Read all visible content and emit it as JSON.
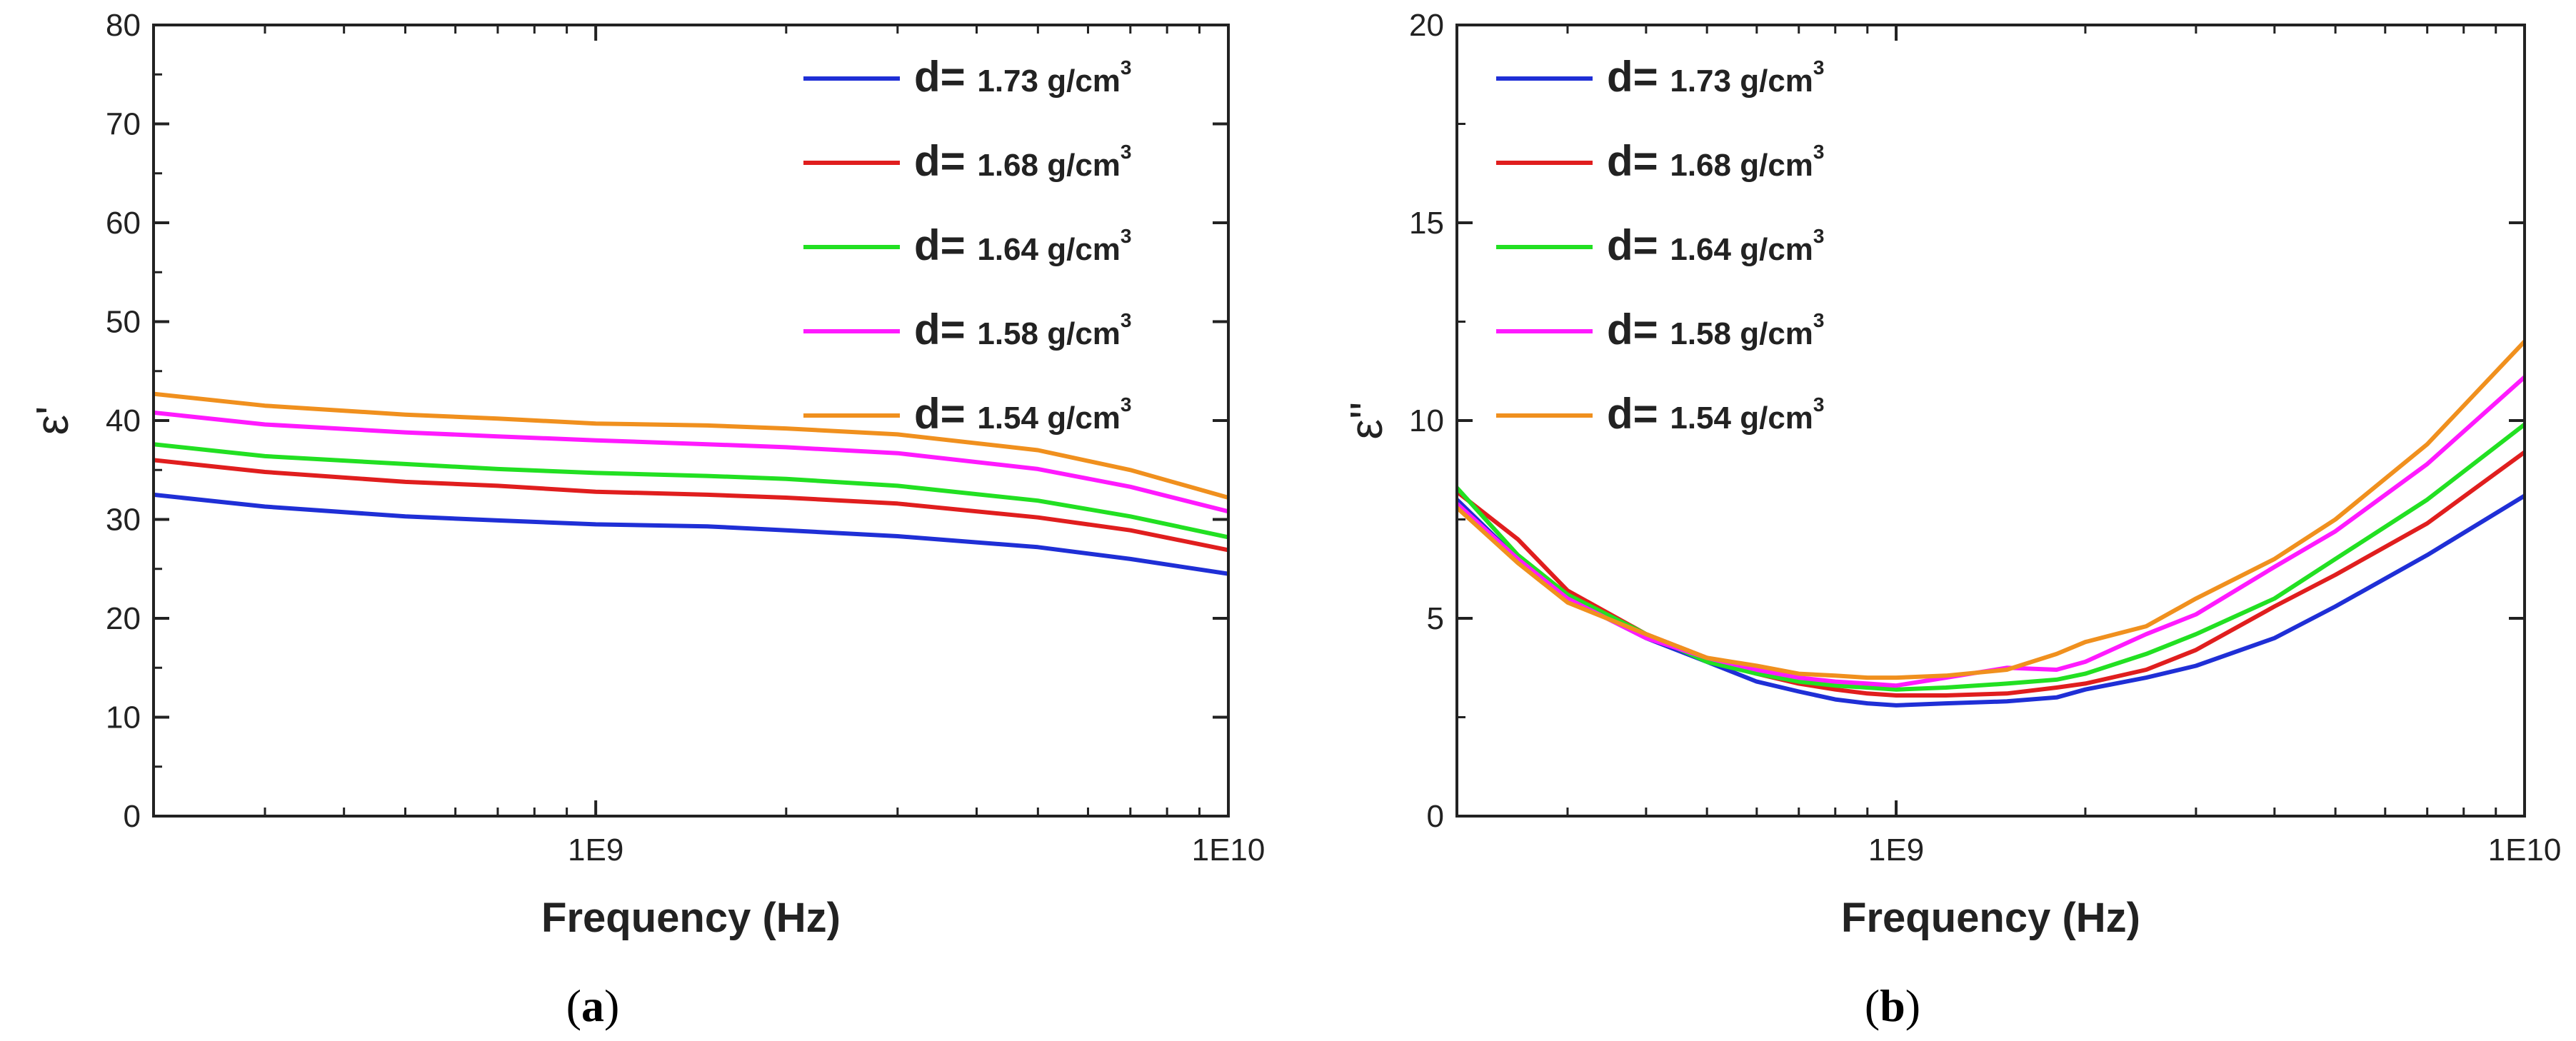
{
  "chart_data": [
    {
      "panel": "a",
      "caption_letter": "a",
      "type": "line",
      "xscale": "log",
      "xlim": [
        200000000,
        10000000000
      ],
      "ylim": [
        0,
        80
      ],
      "ylabel": "ε'",
      "xlabel": "Frequency (Hz)",
      "xticks": [
        {
          "value": 1000000000,
          "label": "1E9"
        },
        {
          "value": 10000000000,
          "label": "1E10"
        }
      ],
      "yticks": [
        0,
        10,
        20,
        30,
        40,
        50,
        60,
        70,
        80
      ],
      "legend_position": "top-right",
      "series": [
        {
          "name": "d= 1.73 g/cm3",
          "prefix": "d=",
          "value": "1.73 g/cm",
          "sup": "3",
          "color": "#1f2fd6",
          "x": [
            200000000,
            300000000,
            500000000,
            700000000,
            1000000000,
            1500000000,
            2000000000,
            3000000000,
            5000000000,
            7000000000,
            10000000000
          ],
          "y": [
            32.5,
            31.3,
            30.3,
            29.9,
            29.5,
            29.3,
            28.9,
            28.3,
            27.2,
            26.0,
            24.5
          ]
        },
        {
          "name": "d= 1.68 g/cm3",
          "prefix": "d=",
          "value": "1.68 g/cm",
          "sup": "3",
          "color": "#e01e1e",
          "x": [
            200000000,
            300000000,
            500000000,
            700000000,
            1000000000,
            1500000000,
            2000000000,
            3000000000,
            5000000000,
            7000000000,
            10000000000
          ],
          "y": [
            36.0,
            34.8,
            33.8,
            33.4,
            32.8,
            32.5,
            32.2,
            31.6,
            30.2,
            28.9,
            26.9
          ]
        },
        {
          "name": "d= 1.64 g/cm3",
          "prefix": "d=",
          "value": "1.64 g/cm",
          "sup": "3",
          "color": "#22e022",
          "x": [
            200000000,
            300000000,
            500000000,
            700000000,
            1000000000,
            1500000000,
            2000000000,
            3000000000,
            5000000000,
            7000000000,
            10000000000
          ],
          "y": [
            37.6,
            36.4,
            35.6,
            35.1,
            34.7,
            34.4,
            34.1,
            33.4,
            31.9,
            30.3,
            28.2
          ]
        },
        {
          "name": "d= 1.58 g/cm3",
          "prefix": "d=",
          "value": "1.58 g/cm",
          "sup": "3",
          "color": "#ff1aff",
          "x": [
            200000000,
            300000000,
            500000000,
            700000000,
            1000000000,
            1500000000,
            2000000000,
            3000000000,
            5000000000,
            7000000000,
            10000000000
          ],
          "y": [
            40.8,
            39.6,
            38.8,
            38.4,
            38.0,
            37.6,
            37.3,
            36.7,
            35.1,
            33.3,
            30.8
          ]
        },
        {
          "name": "d= 1.54 g/cm3",
          "prefix": "d=",
          "value": "1.54 g/cm",
          "sup": "3",
          "color": "#f0901e",
          "x": [
            200000000,
            300000000,
            500000000,
            700000000,
            1000000000,
            1500000000,
            2000000000,
            3000000000,
            5000000000,
            7000000000,
            10000000000
          ],
          "y": [
            42.7,
            41.5,
            40.6,
            40.2,
            39.7,
            39.5,
            39.2,
            38.6,
            37.0,
            35.0,
            32.2
          ]
        }
      ]
    },
    {
      "panel": "b",
      "caption_letter": "b",
      "type": "line",
      "xscale": "log",
      "xlim": [
        200000000,
        10000000000
      ],
      "ylim": [
        0,
        20
      ],
      "ylabel": "ε''",
      "xlabel": "Frequency (Hz)",
      "xticks": [
        {
          "value": 1000000000,
          "label": "1E9"
        },
        {
          "value": 10000000000,
          "label": "1E10"
        }
      ],
      "yticks": [
        0,
        5,
        10,
        15,
        20
      ],
      "legend_position": "top-left",
      "series": [
        {
          "name": "d= 1.73 g/cm3",
          "prefix": "d=",
          "value": "1.73 g/cm",
          "sup": "3",
          "color": "#1f2fd6",
          "x": [
            200000000,
            250000000,
            300000000,
            400000000,
            500000000,
            600000000,
            700000000,
            800000000,
            900000000,
            1000000000,
            1200000000,
            1500000000,
            1800000000,
            2000000000,
            2500000000,
            3000000000,
            4000000000,
            5000000000,
            7000000000,
            10000000000
          ],
          "y": [
            8.0,
            6.5,
            5.5,
            4.5,
            3.9,
            3.4,
            3.15,
            2.95,
            2.85,
            2.8,
            2.85,
            2.9,
            3.0,
            3.2,
            3.5,
            3.8,
            4.5,
            5.3,
            6.6,
            8.1
          ]
        },
        {
          "name": "d= 1.68 g/cm3",
          "prefix": "d=",
          "value": "1.68 g/cm",
          "sup": "3",
          "color": "#e01e1e",
          "x": [
            200000000,
            250000000,
            300000000,
            400000000,
            500000000,
            600000000,
            700000000,
            800000000,
            900000000,
            1000000000,
            1200000000,
            1500000000,
            1800000000,
            2000000000,
            2500000000,
            3000000000,
            4000000000,
            5000000000,
            7000000000,
            10000000000
          ],
          "y": [
            8.2,
            7.0,
            5.7,
            4.6,
            4.0,
            3.6,
            3.35,
            3.2,
            3.1,
            3.05,
            3.05,
            3.1,
            3.25,
            3.35,
            3.7,
            4.2,
            5.3,
            6.1,
            7.4,
            9.2
          ]
        },
        {
          "name": "d= 1.64 g/cm3",
          "prefix": "d=",
          "value": "1.64 g/cm",
          "sup": "3",
          "color": "#22e022",
          "x": [
            200000000,
            250000000,
            300000000,
            400000000,
            500000000,
            600000000,
            700000000,
            800000000,
            900000000,
            1000000000,
            1200000000,
            1500000000,
            1800000000,
            2000000000,
            2500000000,
            3000000000,
            4000000000,
            5000000000,
            7000000000,
            10000000000
          ],
          "y": [
            8.3,
            6.6,
            5.6,
            4.6,
            3.9,
            3.6,
            3.4,
            3.3,
            3.25,
            3.2,
            3.25,
            3.35,
            3.45,
            3.6,
            4.1,
            4.6,
            5.5,
            6.5,
            8.0,
            9.9
          ]
        },
        {
          "name": "d= 1.58 g/cm3",
          "prefix": "d=",
          "value": "1.58 g/cm",
          "sup": "3",
          "color": "#ff1aff",
          "x": [
            200000000,
            250000000,
            300000000,
            400000000,
            500000000,
            600000000,
            700000000,
            800000000,
            900000000,
            1000000000,
            1200000000,
            1500000000,
            1800000000,
            2000000000,
            2500000000,
            3000000000,
            4000000000,
            5000000000,
            7000000000,
            10000000000
          ],
          "y": [
            7.9,
            6.5,
            5.5,
            4.5,
            4.0,
            3.7,
            3.5,
            3.4,
            3.35,
            3.3,
            3.5,
            3.75,
            3.7,
            3.9,
            4.6,
            5.1,
            6.3,
            7.2,
            8.9,
            11.1
          ]
        },
        {
          "name": "d= 1.54 g/cm3",
          "prefix": "d=",
          "value": "1.54 g/cm",
          "sup": "3",
          "color": "#f0901e",
          "x": [
            200000000,
            250000000,
            300000000,
            400000000,
            500000000,
            600000000,
            700000000,
            800000000,
            900000000,
            1000000000,
            1200000000,
            1500000000,
            1800000000,
            2000000000,
            2500000000,
            3000000000,
            4000000000,
            5000000000,
            7000000000,
            10000000000
          ],
          "y": [
            7.8,
            6.4,
            5.4,
            4.6,
            4.0,
            3.8,
            3.6,
            3.55,
            3.5,
            3.5,
            3.55,
            3.7,
            4.1,
            4.4,
            4.8,
            5.5,
            6.5,
            7.5,
            9.4,
            12.0
          ]
        }
      ]
    }
  ]
}
